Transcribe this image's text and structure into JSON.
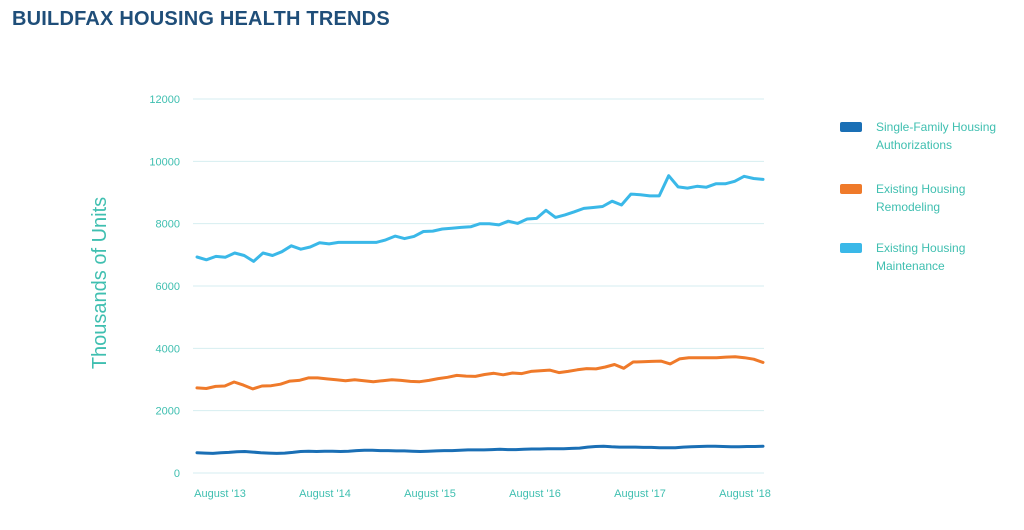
{
  "header": {
    "title": "BUILDFAX HOUSING HEALTH TRENDS"
  },
  "chart_data": {
    "type": "line",
    "title": "BUILDFAX HOUSING HEALTH TRENDS",
    "ylabel": "Thousands of Units",
    "xlabel": "",
    "ylim": [
      0,
      12000
    ],
    "yticks": [
      0,
      2000,
      4000,
      6000,
      8000,
      10000,
      12000
    ],
    "xticks": [
      "August '13",
      "August '14",
      "August '15",
      "August '16",
      "August '17",
      "August '18"
    ],
    "grid": true,
    "legend_position": "right",
    "colors": {
      "text_accent": "#3fbfb0",
      "grid": "#d6eef0",
      "single_family": "#1a6fb5",
      "remodeling": "#ef7a2a",
      "maintenance": "#3ab8e8"
    },
    "series": [
      {
        "name": "Single-Family Housing Authorizations",
        "color": "#1a6fb5",
        "values": [
          650,
          640,
          630,
          650,
          660,
          680,
          690,
          670,
          650,
          640,
          630,
          640,
          660,
          690,
          700,
          690,
          700,
          700,
          690,
          700,
          720,
          730,
          730,
          720,
          720,
          710,
          710,
          700,
          690,
          700,
          710,
          720,
          720,
          730,
          740,
          740,
          740,
          750,
          760,
          750,
          750,
          760,
          770,
          770,
          780,
          780,
          780,
          790,
          800,
          830,
          850,
          860,
          840,
          830,
          830,
          830,
          820,
          820,
          810,
          810,
          810,
          830,
          840,
          850,
          860,
          860,
          850,
          840,
          840,
          850,
          850,
          860
        ]
      },
      {
        "name": "Existing Housing Remodeling",
        "color": "#ef7a2a",
        "values": [
          2730,
          2710,
          2780,
          2790,
          2920,
          2820,
          2700,
          2790,
          2800,
          2850,
          2950,
          2970,
          3050,
          3050,
          3020,
          2990,
          2960,
          2990,
          2960,
          2930,
          2960,
          2990,
          2970,
          2940,
          2930,
          2970,
          3030,
          3070,
          3130,
          3110,
          3100,
          3160,
          3200,
          3150,
          3210,
          3190,
          3260,
          3280,
          3300,
          3220,
          3260,
          3310,
          3350,
          3340,
          3400,
          3480,
          3360,
          3560,
          3570,
          3580,
          3590,
          3500,
          3660,
          3700,
          3700,
          3700,
          3700,
          3720,
          3730,
          3700,
          3650,
          3550
        ]
      },
      {
        "name": "Existing Housing Maintenance",
        "color": "#3ab8e8",
        "values": [
          6930,
          6840,
          6950,
          6920,
          7060,
          6980,
          6790,
          7060,
          6980,
          7100,
          7290,
          7180,
          7250,
          7390,
          7350,
          7400,
          7400,
          7400,
          7400,
          7400,
          7480,
          7600,
          7520,
          7590,
          7750,
          7760,
          7830,
          7850,
          7880,
          7900,
          8000,
          8000,
          7960,
          8080,
          8010,
          8150,
          8170,
          8430,
          8200,
          8280,
          8380,
          8490,
          8520,
          8550,
          8720,
          8600,
          8950,
          8930,
          8890,
          8890,
          9540,
          9180,
          9140,
          9200,
          9170,
          9280,
          9280,
          9360,
          9520,
          9450,
          9420
        ]
      }
    ]
  },
  "legend": {
    "items": [
      {
        "label": "Single-Family Housing Authorizations",
        "color": "#1a6fb5"
      },
      {
        "label": "Existing Housing Remodeling",
        "color": "#ef7a2a"
      },
      {
        "label": "Existing Housing Maintenance",
        "color": "#3ab8e8"
      }
    ]
  }
}
